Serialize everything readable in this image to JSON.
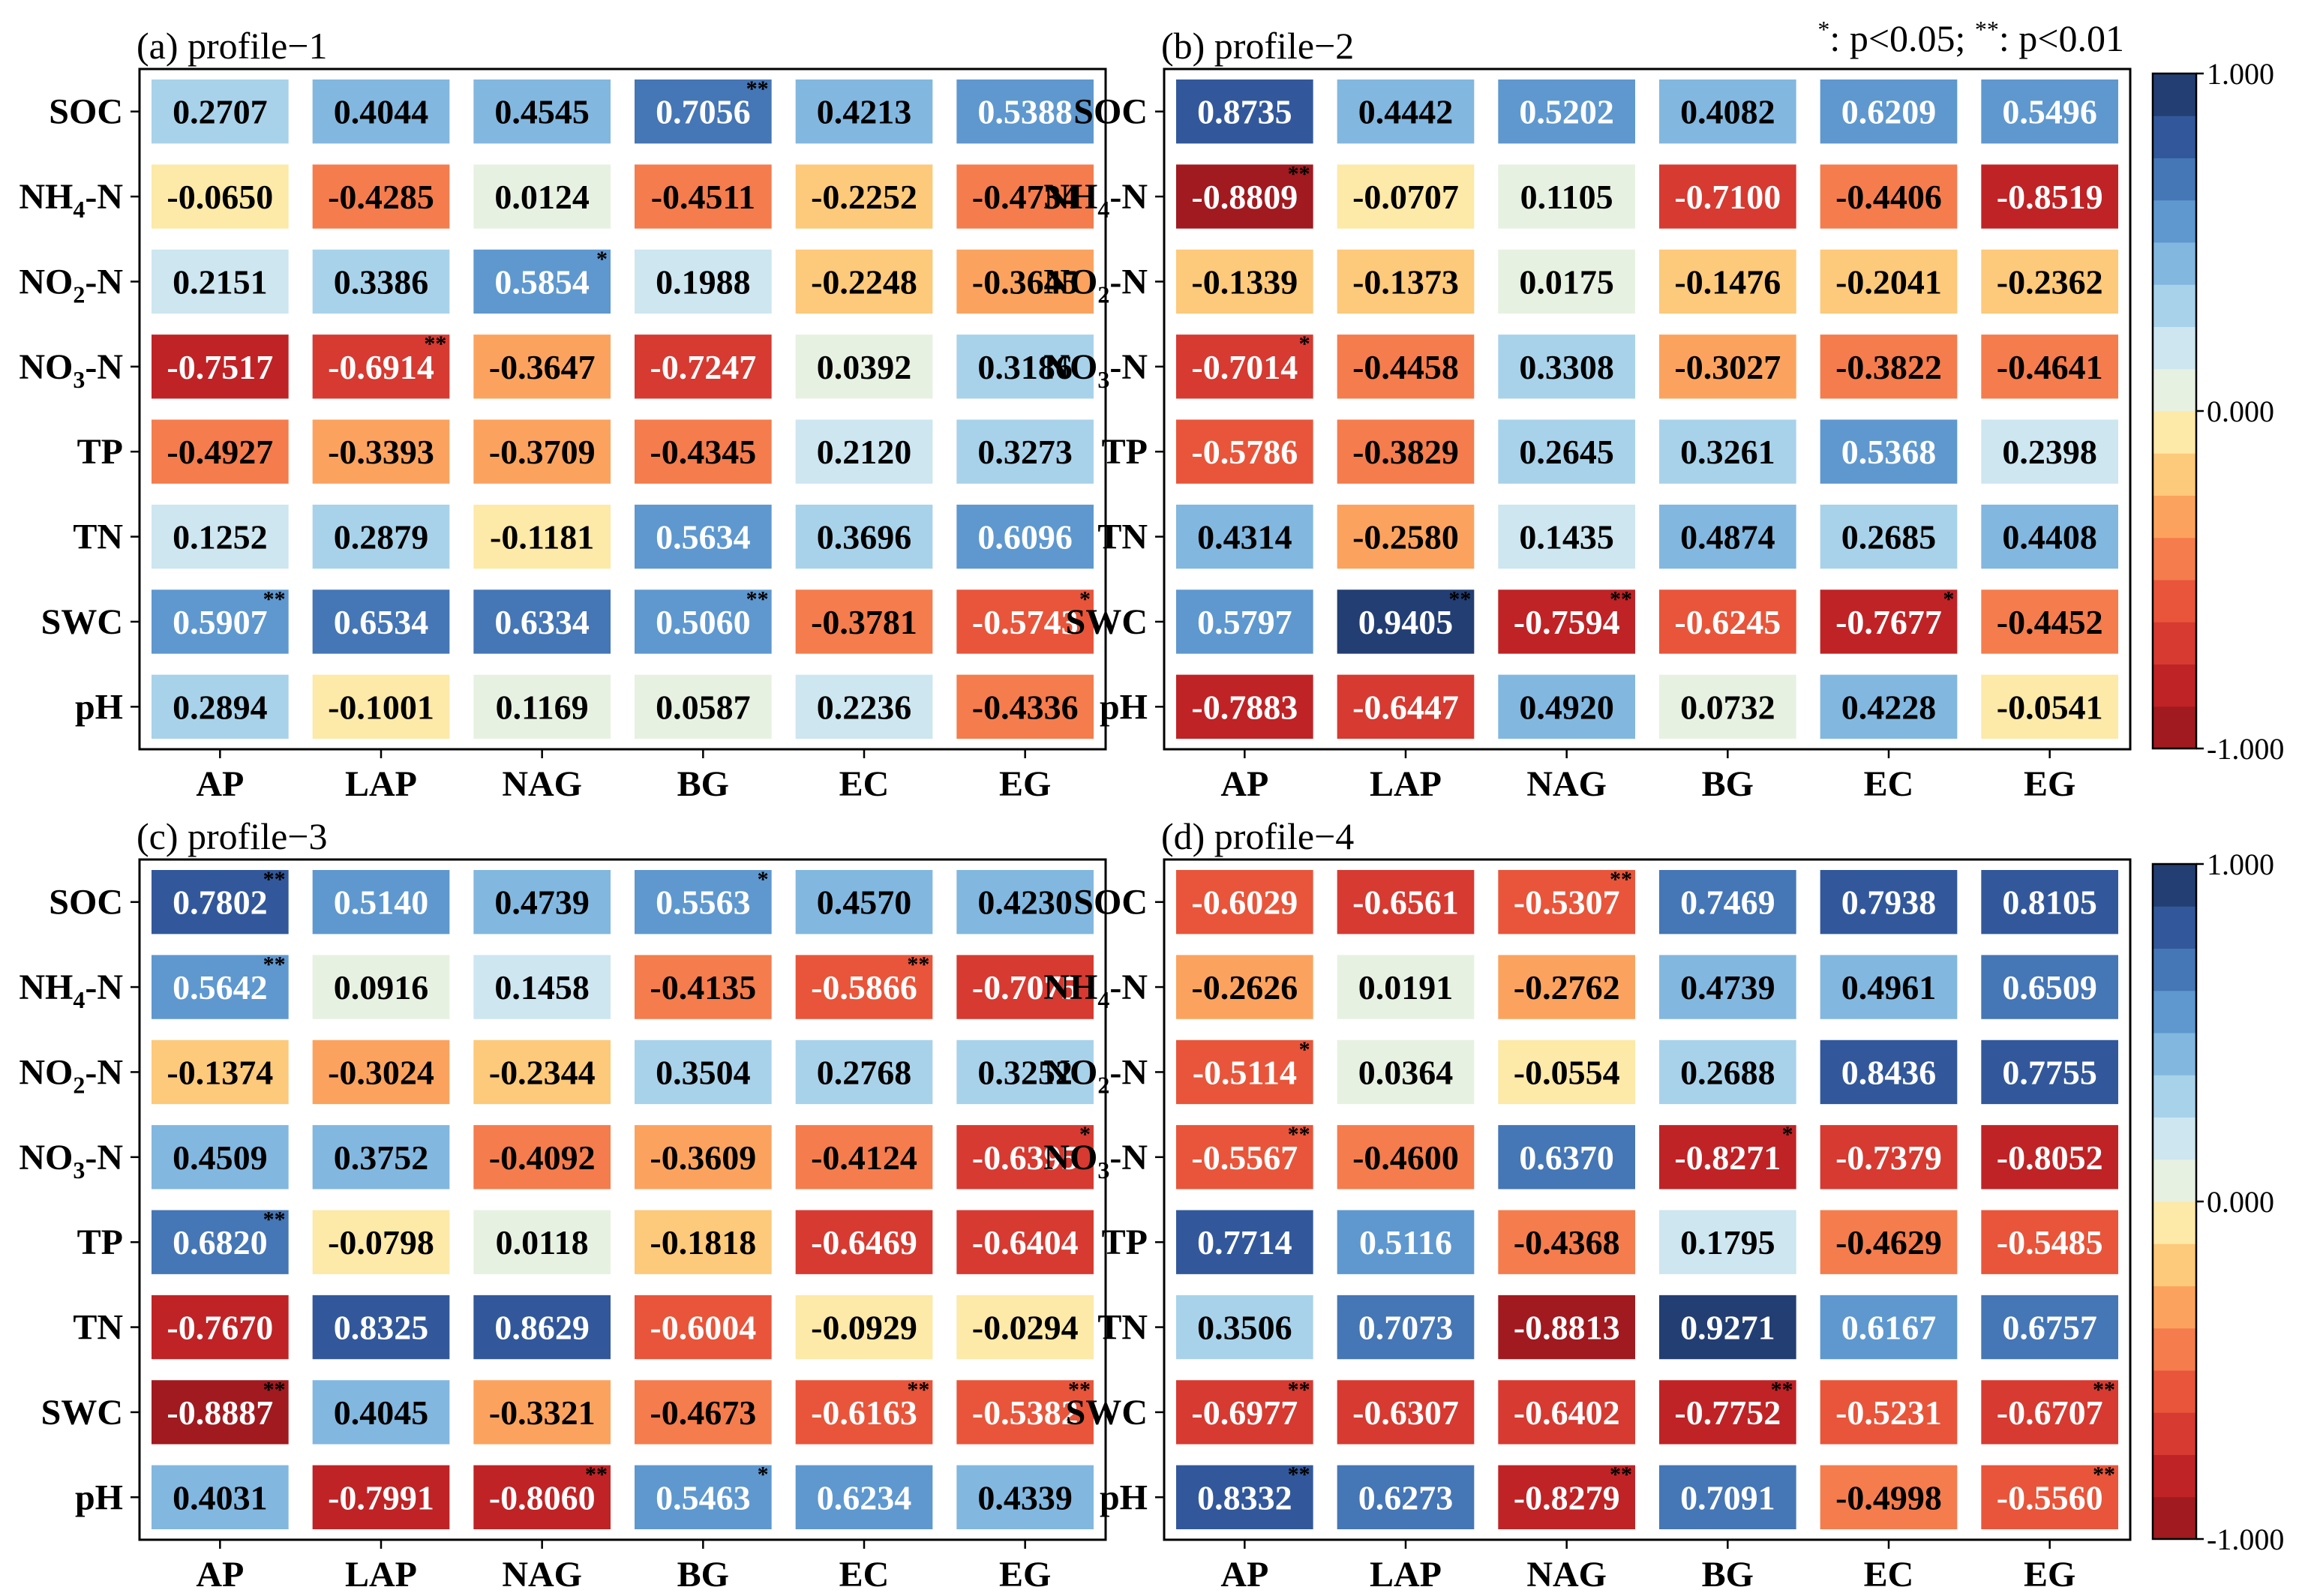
{
  "significance_note": {
    "single": "*",
    "single_text": ": p<0.05; ",
    "double": "**",
    "double_text": ": p<0.01"
  },
  "colorbar": {
    "ticks": [
      "1.000",
      "0.000",
      "-1.000"
    ],
    "levels": [
      "#a01a1f",
      "#bf2326",
      "#d63a31",
      "#e8553a",
      "#f47c4d",
      "#fba35e",
      "#fdc97a",
      "#fde9a8",
      "#e7f1e1",
      "#cde6f0",
      "#a8d2ea",
      "#82b7df",
      "#5e98cf",
      "#4576b5",
      "#32589b",
      "#223e73"
    ]
  },
  "chart_data": [
    {
      "type": "heatmap",
      "title": "(a) profile−1",
      "rows": [
        "SOC",
        "NH4-N",
        "NO2-N",
        "NO3-N",
        "TP",
        "TN",
        "SWC",
        "pH"
      ],
      "columns": [
        "AP",
        "LAP",
        "NAG",
        "BG",
        "EC",
        "EG"
      ],
      "values": [
        [
          0.2707,
          0.4044,
          0.4545,
          0.7056,
          0.4213,
          0.5388
        ],
        [
          -0.065,
          -0.4285,
          0.0124,
          -0.4511,
          -0.2252,
          -0.4734
        ],
        [
          0.2151,
          0.3386,
          0.5854,
          0.1988,
          -0.2248,
          -0.3645
        ],
        [
          -0.7517,
          -0.6914,
          -0.3647,
          -0.7247,
          0.0392,
          0.3186
        ],
        [
          -0.4927,
          -0.3393,
          -0.3709,
          -0.4345,
          0.212,
          0.3273
        ],
        [
          0.1252,
          0.2879,
          -0.1181,
          0.5634,
          0.3696,
          0.6096
        ],
        [
          0.5907,
          0.6534,
          0.6334,
          0.506,
          -0.3781,
          -0.5743
        ],
        [
          0.2894,
          -0.1001,
          0.1169,
          0.0587,
          0.2236,
          -0.4336
        ]
      ],
      "labels": [
        [
          "0.2707",
          "0.4044",
          "0.4545",
          "0.7056",
          "0.4213",
          "0.5388"
        ],
        [
          "-0.0650",
          "-0.4285",
          "0.0124",
          "-0.4511",
          "-0.2252",
          "-0.4734"
        ],
        [
          "0.2151",
          "0.3386",
          "0.5854",
          "0.1988",
          "-0.2248",
          "-0.3645"
        ],
        [
          "-0.7517",
          "-0.6914",
          "-0.3647",
          "-0.7247",
          "0.0392",
          "0.3186"
        ],
        [
          "-0.4927",
          "-0.3393",
          "-0.3709",
          "-0.4345",
          "0.2120",
          "0.3273"
        ],
        [
          "0.1252",
          "0.2879",
          "-0.1181",
          "0.5634",
          "0.3696",
          "0.6096"
        ],
        [
          "0.5907",
          "0.6534",
          "0.6334",
          "0.5060",
          "-0.3781",
          "-0.5743"
        ],
        [
          "0.2894",
          "-0.1001",
          "0.1169",
          "0.0587",
          "0.2236",
          "-0.4336"
        ]
      ],
      "significance": [
        [
          "",
          "",
          "",
          "**",
          "",
          ""
        ],
        [
          "",
          "",
          "",
          "",
          "",
          ""
        ],
        [
          "",
          "",
          "*",
          "",
          "",
          ""
        ],
        [
          "",
          "**",
          "",
          "",
          "",
          ""
        ],
        [
          "",
          "",
          "",
          "",
          "",
          ""
        ],
        [
          "",
          "",
          "",
          "",
          "",
          ""
        ],
        [
          "**",
          "",
          "",
          "**",
          "",
          "*"
        ],
        [
          "",
          "",
          "",
          "",
          "",
          ""
        ]
      ]
    },
    {
      "type": "heatmap",
      "title": "(b) profile−2",
      "rows": [
        "SOC",
        "NH4-N",
        "NO2-N",
        "NO3-N",
        "TP",
        "TN",
        "SWC",
        "pH"
      ],
      "columns": [
        "AP",
        "LAP",
        "NAG",
        "BG",
        "EC",
        "EG"
      ],
      "values": [
        [
          0.8735,
          0.4442,
          0.5202,
          0.4082,
          0.6209,
          0.5496
        ],
        [
          -0.8809,
          -0.0707,
          0.1105,
          -0.71,
          -0.4406,
          -0.8519
        ],
        [
          -0.1339,
          -0.1373,
          0.0175,
          -0.1476,
          -0.2041,
          -0.2362
        ],
        [
          -0.7014,
          -0.4458,
          0.3308,
          -0.3027,
          -0.3822,
          -0.4641
        ],
        [
          -0.5786,
          -0.3829,
          0.2645,
          0.3261,
          0.5368,
          0.2398
        ],
        [
          0.4314,
          -0.258,
          0.1435,
          0.4874,
          0.2685,
          0.4408
        ],
        [
          0.5797,
          0.9405,
          -0.7594,
          -0.6245,
          -0.7677,
          -0.4452
        ],
        [
          -0.7883,
          -0.6447,
          0.492,
          0.0732,
          0.4228,
          -0.0541
        ]
      ],
      "labels": [
        [
          "0.8735",
          "0.4442",
          "0.5202",
          "0.4082",
          "0.6209",
          "0.5496"
        ],
        [
          "-0.8809",
          "-0.0707",
          "0.1105",
          "-0.7100",
          "-0.4406",
          "-0.8519"
        ],
        [
          "-0.1339",
          "-0.1373",
          "0.0175",
          "-0.1476",
          "-0.2041",
          "-0.2362"
        ],
        [
          "-0.7014",
          "-0.4458",
          "0.3308",
          "-0.3027",
          "-0.3822",
          "-0.4641"
        ],
        [
          "-0.5786",
          "-0.3829",
          "0.2645",
          "0.3261",
          "0.5368",
          "0.2398"
        ],
        [
          "0.4314",
          "-0.2580",
          "0.1435",
          "0.4874",
          "0.2685",
          "0.4408"
        ],
        [
          "0.5797",
          "0.9405",
          "-0.7594",
          "-0.6245",
          "-0.7677",
          "-0.4452"
        ],
        [
          "-0.7883",
          "-0.6447",
          "0.4920",
          "0.0732",
          "0.4228",
          "-0.0541"
        ]
      ],
      "significance": [
        [
          "",
          "",
          "",
          "",
          "",
          ""
        ],
        [
          "**",
          "",
          "",
          "",
          "",
          ""
        ],
        [
          "",
          "",
          "",
          "",
          "",
          ""
        ],
        [
          "*",
          "",
          "",
          "",
          "",
          ""
        ],
        [
          "",
          "",
          "",
          "",
          "",
          ""
        ],
        [
          "",
          "",
          "",
          "",
          "",
          ""
        ],
        [
          "",
          "**",
          "**",
          "",
          "*",
          ""
        ],
        [
          "",
          "",
          "",
          "",
          "",
          ""
        ]
      ]
    },
    {
      "type": "heatmap",
      "title": "(c) profile−3",
      "rows": [
        "SOC",
        "NH4-N",
        "NO2-N",
        "NO3-N",
        "TP",
        "TN",
        "SWC",
        "pH"
      ],
      "columns": [
        "AP",
        "LAP",
        "NAG",
        "BG",
        "EC",
        "EG"
      ],
      "values": [
        [
          0.7802,
          0.514,
          0.4739,
          0.5563,
          0.457,
          0.423
        ],
        [
          0.5642,
          0.0916,
          0.1458,
          -0.4135,
          -0.5866,
          -0.7075
        ],
        [
          -0.1374,
          -0.3024,
          -0.2344,
          0.3504,
          0.2768,
          0.3252
        ],
        [
          0.4509,
          0.3752,
          -0.4092,
          -0.3609,
          -0.4124,
          -0.6395
        ],
        [
          0.682,
          -0.0798,
          0.0118,
          -0.1818,
          -0.6469,
          -0.6404
        ],
        [
          -0.767,
          0.8325,
          0.8629,
          -0.6004,
          -0.0929,
          -0.0294
        ],
        [
          -0.8887,
          0.4045,
          -0.3321,
          -0.4673,
          -0.6163,
          -0.5382
        ],
        [
          0.4031,
          -0.7991,
          -0.806,
          0.5463,
          0.6234,
          0.4339
        ]
      ],
      "labels": [
        [
          "0.7802",
          "0.5140",
          "0.4739",
          "0.5563",
          "0.4570",
          "0.4230"
        ],
        [
          "0.5642",
          "0.0916",
          "0.1458",
          "-0.4135",
          "-0.5866",
          "-0.7075"
        ],
        [
          "-0.1374",
          "-0.3024",
          "-0.2344",
          "0.3504",
          "0.2768",
          "0.3252"
        ],
        [
          "0.4509",
          "0.3752",
          "-0.4092",
          "-0.3609",
          "-0.4124",
          "-0.6395"
        ],
        [
          "0.6820",
          "-0.0798",
          "0.0118",
          "-0.1818",
          "-0.6469",
          "-0.6404"
        ],
        [
          "-0.7670",
          "0.8325",
          "0.8629",
          "-0.6004",
          "-0.0929",
          "-0.0294"
        ],
        [
          "-0.8887",
          "0.4045",
          "-0.3321",
          "-0.4673",
          "-0.6163",
          "-0.5382"
        ],
        [
          "0.4031",
          "-0.7991",
          "-0.8060",
          "0.5463",
          "0.6234",
          "0.4339"
        ]
      ],
      "significance": [
        [
          "**",
          "",
          "",
          "*",
          "",
          ""
        ],
        [
          "**",
          "",
          "",
          "",
          "**",
          ""
        ],
        [
          "",
          "",
          "",
          "",
          "",
          ""
        ],
        [
          "",
          "",
          "",
          "",
          "",
          "*"
        ],
        [
          "**",
          "",
          "",
          "",
          "",
          ""
        ],
        [
          "",
          "",
          "",
          "",
          "",
          ""
        ],
        [
          "**",
          "",
          "",
          "",
          "**",
          "**"
        ],
        [
          "",
          "",
          "**",
          "*",
          "",
          ""
        ]
      ]
    },
    {
      "type": "heatmap",
      "title": "(d) profile−4",
      "rows": [
        "SOC",
        "NH4-N",
        "NO2-N",
        "NO3-N",
        "TP",
        "TN",
        "SWC",
        "pH"
      ],
      "columns": [
        "AP",
        "LAP",
        "NAG",
        "BG",
        "EC",
        "EG"
      ],
      "values": [
        [
          -0.6029,
          -0.6561,
          -0.5307,
          0.7469,
          0.7938,
          0.8105
        ],
        [
          -0.2626,
          0.0191,
          -0.2762,
          0.4739,
          0.4961,
          0.6509
        ],
        [
          -0.5114,
          0.0364,
          -0.0554,
          0.2688,
          0.8436,
          0.7755
        ],
        [
          -0.5567,
          -0.46,
          0.637,
          -0.8271,
          -0.7379,
          -0.8052
        ],
        [
          0.7714,
          0.5116,
          -0.4368,
          0.1795,
          -0.4629,
          -0.5485
        ],
        [
          0.3506,
          0.7073,
          -0.8813,
          0.9271,
          0.6167,
          0.6757
        ],
        [
          -0.6977,
          -0.6307,
          -0.6402,
          -0.7752,
          -0.5231,
          -0.6707
        ],
        [
          0.8332,
          0.6273,
          -0.8279,
          0.7091,
          -0.4998,
          -0.556
        ]
      ],
      "labels": [
        [
          "-0.6029",
          "-0.6561",
          "-0.5307",
          "0.7469",
          "0.7938",
          "0.8105"
        ],
        [
          "-0.2626",
          "0.0191",
          "-0.2762",
          "0.4739",
          "0.4961",
          "0.6509"
        ],
        [
          "-0.5114",
          "0.0364",
          "-0.0554",
          "0.2688",
          "0.8436",
          "0.7755"
        ],
        [
          "-0.5567",
          "-0.4600",
          "0.6370",
          "-0.8271",
          "-0.7379",
          "-0.8052"
        ],
        [
          "0.7714",
          "0.5116",
          "-0.4368",
          "0.1795",
          "-0.4629",
          "-0.5485"
        ],
        [
          "0.3506",
          "0.7073",
          "-0.8813",
          "0.9271",
          "0.6167",
          "0.6757"
        ],
        [
          "-0.6977",
          "-0.6307",
          "-0.6402",
          "-0.7752",
          "-0.5231",
          "-0.6707"
        ],
        [
          "0.8332",
          "0.6273",
          "-0.8279",
          "0.7091",
          "-0.4998",
          "-0.5560"
        ]
      ],
      "significance": [
        [
          "",
          "",
          "**",
          "",
          "",
          ""
        ],
        [
          "",
          "",
          "",
          "",
          "",
          ""
        ],
        [
          "*",
          "",
          "",
          "",
          "",
          ""
        ],
        [
          "**",
          "",
          "",
          "*",
          "",
          ""
        ],
        [
          "",
          "",
          "",
          "",
          "",
          ""
        ],
        [
          "",
          "",
          "",
          "",
          "",
          ""
        ],
        [
          "**",
          "",
          "",
          "**",
          "",
          "**"
        ],
        [
          "**",
          "",
          "**",
          "",
          "",
          "**"
        ]
      ]
    }
  ]
}
